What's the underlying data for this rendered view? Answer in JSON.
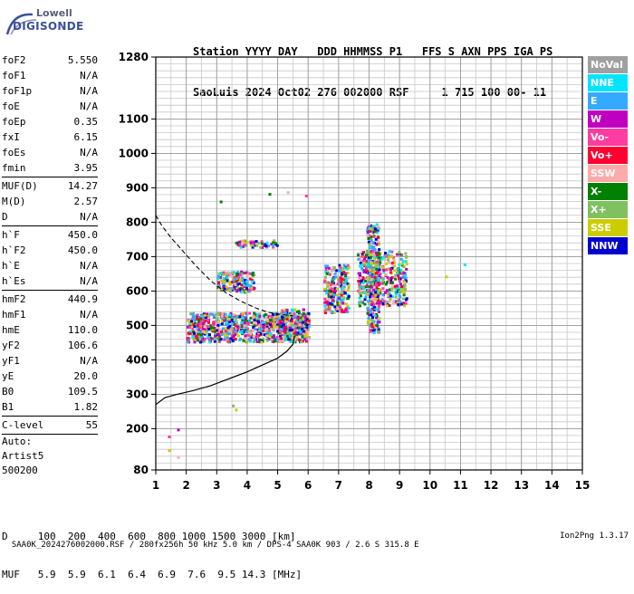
{
  "logo": {
    "line1": "Lowell",
    "line2": "DIGISONDE"
  },
  "header": {
    "line1": "Station YYYY DAY   DDD HHMMSS P1   FFS S AXN PPS IGA PS",
    "line2": "SaoLuis 2024 Oct02 276 002000 RSF     1 715 100 00- 11"
  },
  "params": [
    {
      "label": "foF2",
      "value": "5.550"
    },
    {
      "label": "foF1",
      "value": "N/A"
    },
    {
      "label": "foF1p",
      "value": "N/A"
    },
    {
      "label": "foE",
      "value": "N/A"
    },
    {
      "label": "foEp",
      "value": "0.35"
    },
    {
      "label": "fxI",
      "value": "6.15"
    },
    {
      "label": "foEs",
      "value": "N/A"
    },
    {
      "label": "fmin",
      "value": "3.95"
    },
    {
      "sep": true
    },
    {
      "label": "MUF(D)",
      "value": "14.27"
    },
    {
      "label": "M(D)",
      "value": "2.57"
    },
    {
      "label": "D",
      "value": "N/A"
    },
    {
      "sep": true
    },
    {
      "label": "h`F",
      "value": "450.0"
    },
    {
      "label": "h`F2",
      "value": "450.0"
    },
    {
      "label": "h`E",
      "value": "N/A"
    },
    {
      "label": "h`Es",
      "value": "N/A"
    },
    {
      "sep": true
    },
    {
      "label": "hmF2",
      "value": "440.9"
    },
    {
      "label": "hmF1",
      "value": "N/A"
    },
    {
      "label": "hmE",
      "value": "110.0"
    },
    {
      "label": "yF2",
      "value": "106.6"
    },
    {
      "label": "yF1",
      "value": "N/A"
    },
    {
      "label": "yE",
      "value": "20.0"
    },
    {
      "label": "B0",
      "value": "109.5"
    },
    {
      "label": "B1",
      "value": "1.82"
    },
    {
      "sep": true
    },
    {
      "label": "C-level",
      "value": "55"
    },
    {
      "sep": true
    }
  ],
  "auto": {
    "line1": "Auto:",
    "line2": "Artist5",
    "line3": "500200"
  },
  "legend": [
    {
      "label": "NoVal",
      "color": "#a0a0a0"
    },
    {
      "label": "NNE",
      "color": "#00e5ff"
    },
    {
      "label": "E",
      "color": "#33aaff"
    },
    {
      "label": "W",
      "color": "#c000c0"
    },
    {
      "label": "Vo-",
      "color": "#ff3ca0"
    },
    {
      "label": "Vo+",
      "color": "#ff0030"
    },
    {
      "label": "SSW",
      "color": "#ffaaaa"
    },
    {
      "label": "X-",
      "color": "#008000"
    },
    {
      "label": "X+",
      "color": "#80c060"
    },
    {
      "label": "SSE",
      "color": "#cccc00"
    },
    {
      "label": "NNW",
      "color": "#0000d0"
    }
  ],
  "muf": {
    "line1": "D     100  200  400  600  800 1000 1500 3000 [km]",
    "line2": "MUF   5.9  5.9  6.1  6.4  6.9  7.6  9.5 14.3 [MHz]"
  },
  "footer": {
    "left": "SAA0K_2024276002000.RSF / 280fx256h 50 kHz 5.0 km / DPS-4 SAA0K 903 / 2.6 S 315.8 E",
    "right": "Ion2Png 1.3.17"
  },
  "chart_data": {
    "type": "scatter",
    "xlim": [
      1,
      15
    ],
    "ylim": [
      80,
      1280
    ],
    "x_ticks": [
      1,
      2,
      3,
      4,
      5,
      6,
      7,
      8,
      9,
      10,
      11,
      12,
      13,
      14,
      15
    ],
    "y_ticks": [
      80,
      200,
      300,
      400,
      500,
      600,
      700,
      800,
      900,
      1000,
      1100,
      1280
    ],
    "ylabel_unit": "",
    "grid": true,
    "clusters": [
      {
        "name": "F-trace low",
        "x": [
          2.0,
          6.0
        ],
        "y": [
          455,
          540
        ]
      },
      {
        "name": "F-trace 600s",
        "x": [
          3.0,
          4.2
        ],
        "y": [
          600,
          660
        ]
      },
      {
        "name": "F-trace upper",
        "x": [
          3.6,
          5.0
        ],
        "y": [
          730,
          750
        ]
      },
      {
        "name": "F-trace 5.5",
        "x": [
          5.0,
          6.0
        ],
        "y": [
          480,
          550
        ]
      },
      {
        "name": "spread 6.5-7.2",
        "x": [
          6.5,
          7.3
        ],
        "y": [
          540,
          680
        ]
      },
      {
        "name": "spread 7.8-9",
        "x": [
          7.6,
          9.2
        ],
        "y": [
          560,
          720
        ]
      },
      {
        "name": "spread 8 column",
        "x": [
          7.9,
          8.3
        ],
        "y": [
          480,
          800
        ]
      }
    ],
    "x_profile_curve": {
      "x": [
        1.0,
        1.3,
        1.7,
        2.2,
        2.8,
        3.4,
        4.0,
        4.5,
        5.0,
        5.3,
        5.5,
        5.55
      ],
      "y": [
        270,
        290,
        300,
        310,
        325,
        345,
        365,
        385,
        405,
        425,
        445,
        470
      ]
    },
    "virtual_height_curve": {
      "x": [
        1.0,
        1.2,
        1.5,
        1.9,
        2.3,
        2.8,
        3.3,
        3.8,
        4.3,
        4.7,
        5.1,
        5.5
      ],
      "y": [
        820,
        790,
        755,
        715,
        675,
        630,
        595,
        570,
        550,
        538,
        532,
        528
      ]
    },
    "sparse_points": [
      {
        "x": 1.4,
        "y": 180
      },
      {
        "x": 1.7,
        "y": 200
      },
      {
        "x": 1.4,
        "y": 140
      },
      {
        "x": 1.7,
        "y": 120
      },
      {
        "x": 3.5,
        "y": 270
      },
      {
        "x": 3.6,
        "y": 258
      },
      {
        "x": 11.1,
        "y": 680
      },
      {
        "x": 10.5,
        "y": 645
      },
      {
        "x": 3.1,
        "y": 863
      },
      {
        "x": 4.7,
        "y": 885
      },
      {
        "x": 5.3,
        "y": 890
      },
      {
        "x": 5.9,
        "y": 880
      }
    ]
  }
}
